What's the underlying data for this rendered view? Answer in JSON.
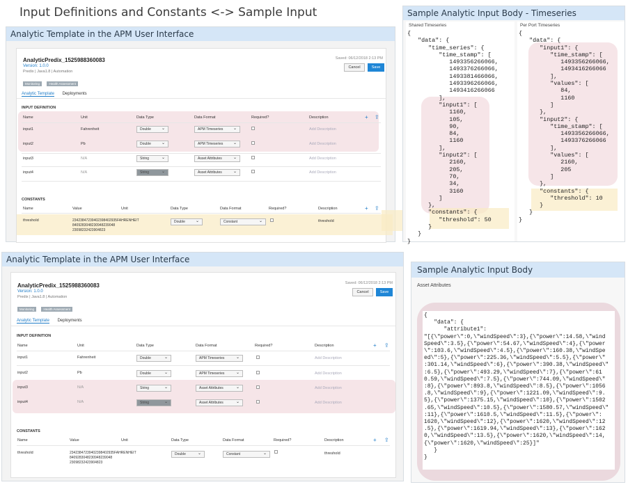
{
  "main_title": "Input Definitions and Constants <-> Sample Input",
  "top_panel": {
    "header": "Analytic Template in the APM User Interface",
    "saved": "Saved: 06/12/2018 2:13 PM",
    "asset": "AnalyticPredix_1525988360083",
    "version": "Version: 1.0.0",
    "meta": "Predix | Java1.8 | Automation",
    "tags": [
      "Monitoring",
      "Health Assessment"
    ],
    "cancel_label": "Cancel",
    "save_label": "Save",
    "tabs": [
      "Analytic Template",
      "Deployments"
    ],
    "input_section": "INPUT DEFINITION",
    "input_headers": [
      "Name",
      "Unit",
      "Data Type",
      "Data Format",
      "Required?",
      "Description"
    ],
    "inputs": [
      {
        "name": "input1",
        "unit": "Fahrenheit",
        "type": "Double",
        "format": "APM Timeseries",
        "desc": "Add Description"
      },
      {
        "name": "input2",
        "unit": "Pb",
        "type": "Double",
        "format": "APM Timeseries",
        "desc": "Add Description"
      },
      {
        "name": "input3",
        "unit": "N/A",
        "type": "String",
        "format": "Asset Attributes",
        "desc": "Add Description"
      },
      {
        "name": "input4",
        "unit": "N/A",
        "type": "String",
        "format": "Asset Attributes",
        "desc": "Add Description"
      }
    ],
    "const_section": "CONSTANTS",
    "const_headers": [
      "Name",
      "Value",
      "Unit",
      "Data Type",
      "Data Format",
      "Required?",
      "Description"
    ],
    "constant": {
      "name": "threshold",
      "value1": "23423847239402398402935FAHRENHEIT",
      "value2": "8409283048230948239048",
      "value3": "23098232423904823",
      "type": "Double",
      "format": "Constant",
      "desc": "threshold"
    }
  },
  "timeseries_panel": {
    "header": "Sample Analytic Input Body - Timeseries",
    "shared_label": "Shared Timeseries",
    "perport_label": "Per Port Timeseries",
    "shared_code": "{\n   \"data\": {\n      \"time_series\": {\n         \"time_stamp\": [\n            1493356266066,\n            1493376266066,\n            1493381466066,\n            1493396266066,\n            1493416266066\n         ],\n         \"input1\": [\n            1160,\n            105,\n            90,\n            84,\n            1160\n         ],\n         \"input2\": [\n            2160,\n            205,\n            70,\n            34,\n            3160\n         ]\n      },\n      \"constants\": {\n         \"threshold\": 50\n      }\n   }\n}",
    "perport_code": "{\n   \"data\": {\n      \"input1\": {\n         \"time_stamp\": [\n            1493356266066,\n            1493416266066\n         ],\n         \"values\": [\n            84,\n            1160\n         ]\n      },\n      \"input2\": {\n         \"time_stamp\": [\n            1493356266066,\n            1493376266066\n         ],\n         \"values\": [\n            2160,\n            205\n         ]\n      },\n      \"constants\": {\n         \"threshold\": 10\n      }\n   }\n}"
  },
  "bottom_panel": {
    "header": "Analytic Template in the APM User Interface"
  },
  "asset_panel": {
    "header": "Sample Analytic Input Body",
    "sub_label": "Asset Attributes",
    "code": "{\n   \"data\": {\n      \"attribute1\":\n\"[{\\\"power\\\":0,\\\"windSpeed\\\":3},{\\\"power\\\":14.58,\\\"wind\nSpeed\\\":3.5},{\\\"power\\\":54.67,\\\"windSpeed\\\":4},{\\\"power\n\\\":103.6,\\\"windSpeed\\\":4.5},{\\\"power\\\":160.38,\\\"windSpe\ned\\\":5},{\\\"power\\\":225.36,\\\"windSpeed\\\":5.5},{\\\"power\\\"\n:301.14,\\\"windSpeed\\\":6},{\\\"power\\\":390.38,\\\"windSpeed\\\"\n:6.5},{\\\"power\\\":493.29,\\\"windSpeed\\\":7},{\\\"power\\\":61\n0.59,\\\"windSpeed\\\":7.5},{\\\"power\\\":744.09,\\\"windSpeed\\\"\n:8},{\\\"power\\\":893.8,\\\"windSpeed\\\":8.5},{\\\"power\\\":1056\n.8,\\\"windSpeed\\\":9},{\\\"power\\\":1221.09,\\\"windSpeed\\\":9.\n5},{\\\"power\\\":1375.15,\\\"windSpeed\\\":10},{\\\"power\\\":1502\n.65,\\\"windSpeed\\\":10.5},{\\\"power\\\":1580.57,\\\"windSpeed\\\"\n:11},{\\\"power\\\":1610.5,\\\"windSpeed\\\":11.5},{\\\"power\\\":\n1620,\\\"windSpeed\\\":12},{\\\"power\\\":1620,\\\"windSpeed\\\":12\n.5},{\\\"power\\\":1619.94,\\\"windSpeed\\\":13},{\\\"power\\\":162\n0,\\\"windSpeed\\\":13.5},{\\\"power\\\":1620,\\\"windSpeed\\\":14,\n{\\\"power\\\":1620,\\\"windSpeed\\\":25}]\"\n   }\n}"
  }
}
